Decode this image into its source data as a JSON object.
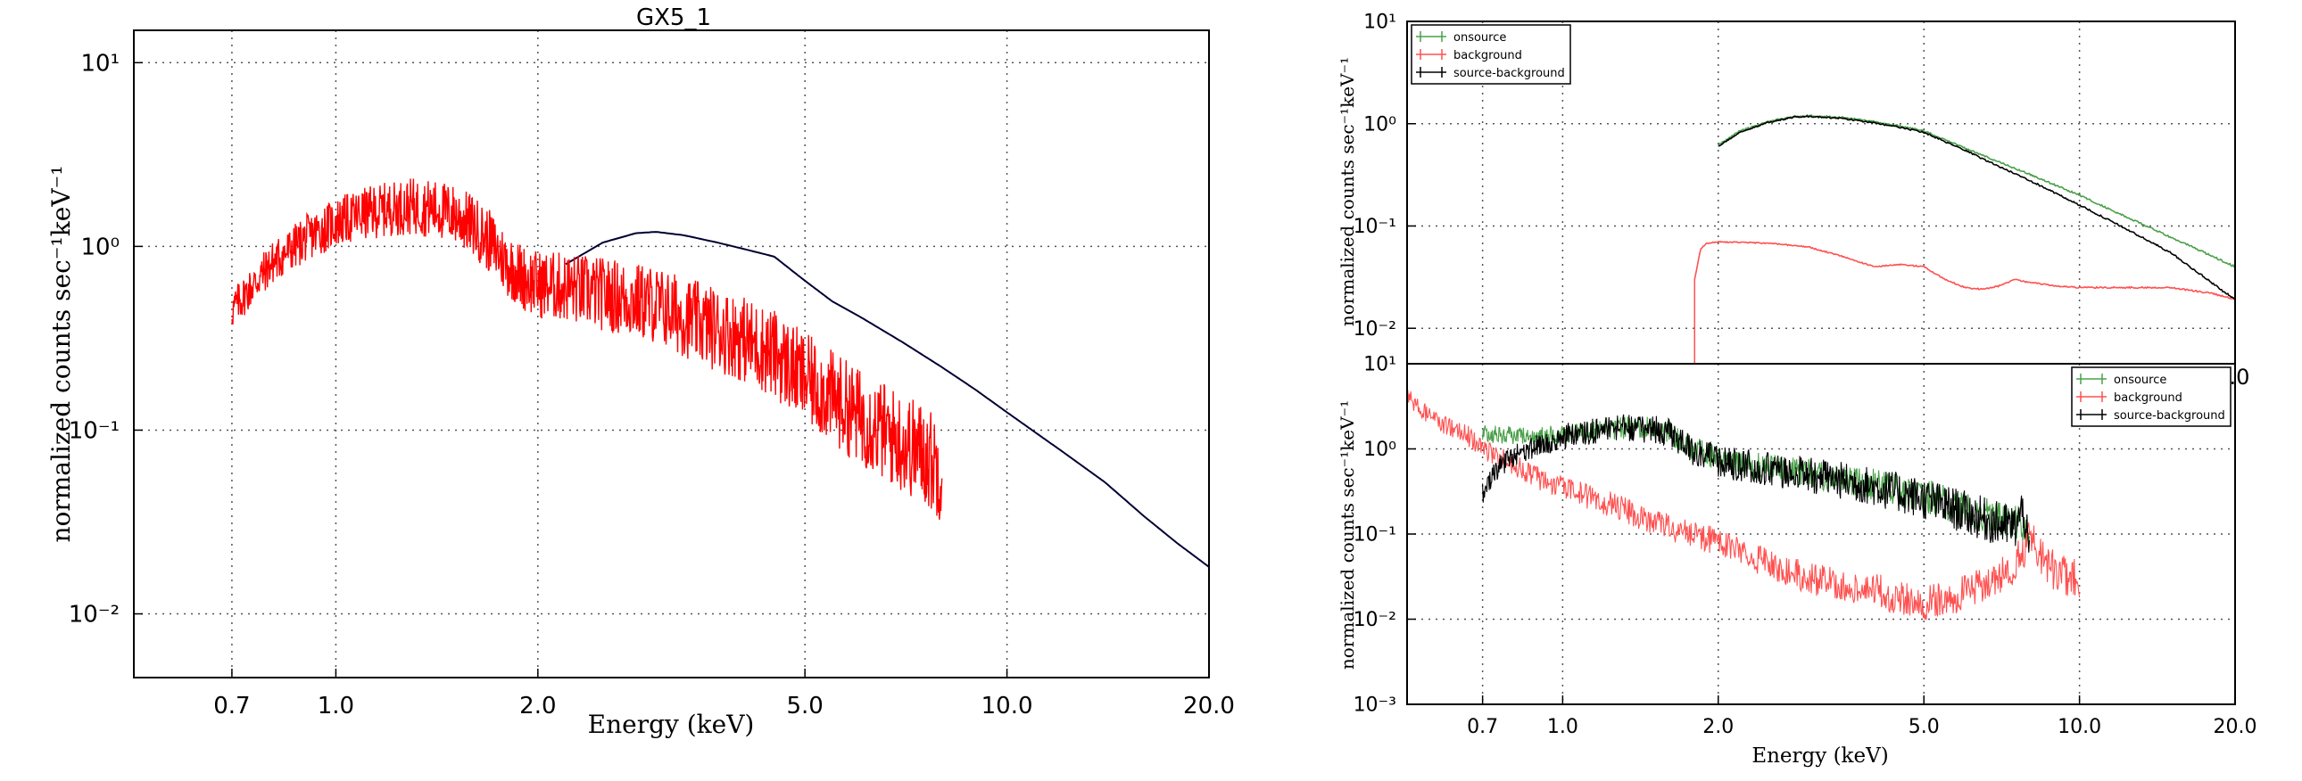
{
  "chart_data": [
    {
      "type": "line",
      "title": "GX5_1",
      "xlabel": "Energy (keV)",
      "ylabel": "normalized counts sec⁻¹keV⁻¹",
      "xscale": "log",
      "yscale": "log",
      "xlim": [
        0.5,
        20.0
      ],
      "ylim": [
        0.0045,
        15
      ],
      "grid": true,
      "x_ticks": [
        "0.7",
        "1.0",
        "2.0",
        "5.0",
        "10.0",
        "20.0"
      ],
      "x_tick_values": [
        0.7,
        1.0,
        2.0,
        5.0,
        10.0,
        20.0
      ],
      "y_ticks": [
        "10⁻²",
        "10⁻¹",
        "10⁰",
        "10¹"
      ],
      "y_tick_values": [
        0.01,
        0.1,
        1,
        10
      ],
      "series": [
        {
          "color": "#000033",
          "style": "errorbar-steps",
          "x": [
            2.2,
            2.5,
            2.8,
            3.0,
            3.3,
            3.7,
            4.0,
            4.5,
            5.0,
            5.5,
            6.0,
            7.0,
            8.0,
            9.0,
            10.0,
            12.0,
            14.0,
            16.0,
            18.0,
            20.0
          ],
          "y": [
            0.8,
            1.05,
            1.18,
            1.2,
            1.15,
            1.05,
            0.98,
            0.88,
            0.65,
            0.5,
            0.42,
            0.3,
            0.22,
            0.165,
            0.125,
            0.078,
            0.052,
            0.034,
            0.024,
            0.018
          ]
        },
        {
          "color": "#ff0000",
          "style": "noisy-steps",
          "x": [
            0.7,
            0.8,
            0.9,
            1.0,
            1.1,
            1.2,
            1.3,
            1.4,
            1.5,
            1.6,
            1.7,
            1.8,
            1.9,
            2.0,
            2.2,
            2.5,
            3.0,
            3.5,
            4.0,
            4.5,
            5.0,
            5.5,
            6.0,
            6.5,
            7.0,
            7.5,
            8.0
          ],
          "y": [
            0.45,
            0.8,
            1.1,
            1.35,
            1.5,
            1.6,
            1.65,
            1.6,
            1.5,
            1.3,
            1.05,
            0.8,
            0.68,
            0.62,
            0.6,
            0.55,
            0.48,
            0.38,
            0.32,
            0.26,
            0.19,
            0.15,
            0.12,
            0.1,
            0.085,
            0.075,
            0.06
          ]
        }
      ]
    },
    {
      "type": "line",
      "title": "",
      "xlabel": "",
      "ylabel": "normalized counts sec⁻¹keV⁻¹",
      "xscale": "log",
      "yscale": "log",
      "xlim": [
        0.5,
        20.0
      ],
      "ylim": [
        0.0045,
        10
      ],
      "grid": true,
      "x_ticks": [
        ".0"
      ],
      "y_ticks": [
        "10⁻²",
        "10⁻¹",
        "10⁰",
        "10¹"
      ],
      "y_tick_values": [
        0.01,
        0.1,
        1,
        10
      ],
      "legend": {
        "position": "top-left",
        "entries": [
          "onsource",
          "background",
          "source-background"
        ]
      },
      "series": [
        {
          "name": "onsource",
          "color": "#4aa04a",
          "x": [
            2.0,
            2.2,
            2.5,
            2.8,
            3.0,
            3.5,
            4.0,
            4.5,
            5.0,
            6.0,
            7.0,
            8.0,
            10.0,
            12.0,
            15.0,
            20.0
          ],
          "y": [
            0.62,
            0.85,
            1.05,
            1.18,
            1.2,
            1.15,
            1.05,
            0.95,
            0.85,
            0.58,
            0.42,
            0.32,
            0.2,
            0.13,
            0.078,
            0.04
          ]
        },
        {
          "name": "background",
          "color": "#ff5050",
          "x": [
            1.8,
            1.85,
            1.9,
            2.0,
            2.5,
            3.0,
            3.5,
            4.0,
            4.5,
            5.0,
            5.5,
            6.0,
            6.5,
            7.0,
            7.5,
            8.0,
            9.0,
            10.0,
            12.0,
            15.0,
            18.0,
            20.0
          ],
          "y": [
            0.03,
            0.06,
            0.068,
            0.07,
            0.068,
            0.062,
            0.05,
            0.04,
            0.042,
            0.04,
            0.03,
            0.025,
            0.024,
            0.026,
            0.03,
            0.028,
            0.026,
            0.025,
            0.025,
            0.025,
            0.022,
            0.019
          ]
        },
        {
          "name": "source-background",
          "color": "#000000",
          "x": [
            2.0,
            2.2,
            2.5,
            2.8,
            3.0,
            3.5,
            4.0,
            4.5,
            5.0,
            6.0,
            7.0,
            8.0,
            10.0,
            12.0,
            15.0,
            20.0
          ],
          "y": [
            0.6,
            0.82,
            1.03,
            1.16,
            1.18,
            1.12,
            1.02,
            0.92,
            0.82,
            0.55,
            0.38,
            0.28,
            0.16,
            0.1,
            0.055,
            0.019
          ]
        }
      ]
    },
    {
      "type": "line",
      "title": "",
      "xlabel": "Energy (keV)",
      "ylabel": "normalized counts sec⁻¹keV⁻¹",
      "xscale": "log",
      "yscale": "log",
      "xlim": [
        0.5,
        20.0
      ],
      "ylim": [
        0.001,
        10
      ],
      "grid": true,
      "x_ticks": [
        "0.7",
        "1.0",
        "2.0",
        "5.0",
        "10.0",
        "20.0"
      ],
      "x_tick_values": [
        0.7,
        1.0,
        2.0,
        5.0,
        10.0,
        20.0
      ],
      "y_ticks": [
        "10⁻³",
        "10⁻²",
        "10⁻¹",
        "10⁰",
        "10¹"
      ],
      "y_tick_values": [
        0.001,
        0.01,
        0.1,
        1,
        10
      ],
      "legend": {
        "position": "top-right",
        "entries": [
          "onsource",
          "background",
          "source-background"
        ]
      },
      "series": [
        {
          "name": "onsource",
          "color": "#4aa04a",
          "x": [
            0.7,
            0.8,
            0.9,
            1.0,
            1.2,
            1.4,
            1.6,
            1.8,
            2.0,
            2.5,
            3.0,
            4.0,
            5.0,
            6.0,
            7.0,
            7.5,
            8.0
          ],
          "y": [
            1.5,
            1.45,
            1.4,
            1.5,
            1.7,
            1.8,
            1.6,
            1.0,
            0.75,
            0.6,
            0.52,
            0.38,
            0.28,
            0.2,
            0.15,
            0.14,
            0.1
          ]
        },
        {
          "name": "background",
          "color": "#ff5050",
          "x": [
            0.5,
            0.55,
            0.6,
            0.65,
            0.7,
            0.8,
            0.9,
            1.0,
            1.2,
            1.5,
            2.0,
            2.5,
            3.0,
            4.0,
            5.0,
            6.0,
            7.0,
            7.5,
            7.8,
            8.0,
            8.5,
            9.0,
            10.0
          ],
          "y": [
            4.0,
            2.5,
            1.8,
            1.5,
            1.0,
            0.65,
            0.45,
            0.35,
            0.24,
            0.14,
            0.08,
            0.045,
            0.03,
            0.022,
            0.015,
            0.02,
            0.03,
            0.045,
            0.06,
            0.1,
            0.05,
            0.035,
            0.03
          ]
        },
        {
          "name": "source-background",
          "color": "#000000",
          "x": [
            0.7,
            0.75,
            0.8,
            0.9,
            1.0,
            1.2,
            1.4,
            1.6,
            1.8,
            2.0,
            2.5,
            3.0,
            4.0,
            5.0,
            6.0,
            7.0,
            7.5,
            7.8,
            8.0
          ],
          "y": [
            0.3,
            0.6,
            0.8,
            1.1,
            1.4,
            1.7,
            1.8,
            1.55,
            0.95,
            0.7,
            0.58,
            0.5,
            0.36,
            0.26,
            0.18,
            0.13,
            0.12,
            0.2,
            0.05
          ]
        }
      ]
    }
  ]
}
